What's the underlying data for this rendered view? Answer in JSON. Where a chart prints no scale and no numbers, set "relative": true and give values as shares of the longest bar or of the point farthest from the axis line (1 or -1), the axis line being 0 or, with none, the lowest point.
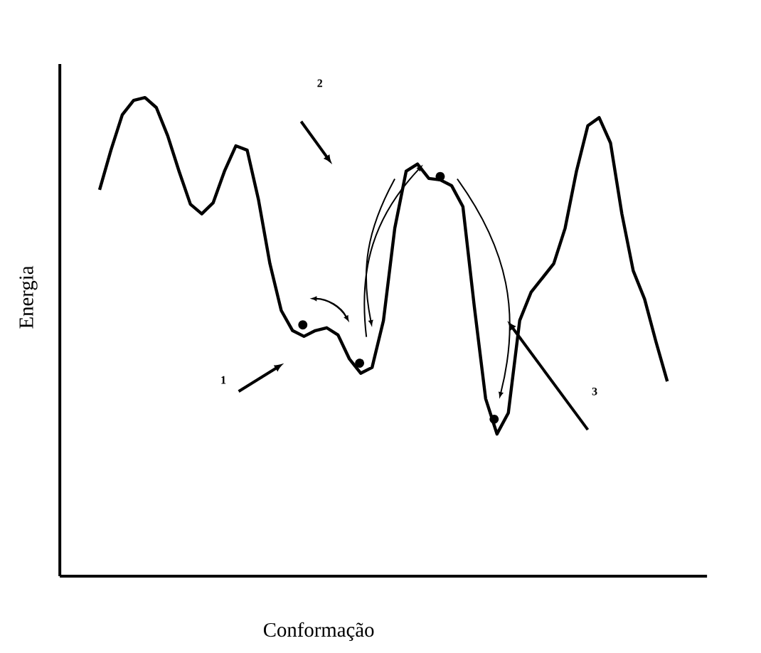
{
  "chart_data": {
    "type": "line",
    "relative": true,
    "xlabel": "Conformação",
    "ylabel": "Energia",
    "marker": "none",
    "categories": [
      null,
      null,
      null,
      null,
      null,
      null,
      null,
      null,
      null,
      null,
      null,
      null,
      null,
      null,
      null,
      null,
      null,
      null,
      null,
      null,
      null,
      null,
      null,
      null,
      null,
      null,
      null,
      null,
      null,
      null,
      null,
      null,
      null,
      null,
      null,
      null,
      null,
      null,
      null,
      null,
      null,
      null,
      null,
      null,
      null,
      null,
      null,
      null,
      null,
      null,
      null
    ],
    "series": [
      {
        "color": "#000000",
        "values": [
          0.807,
          0.89,
          0.964,
          0.994,
          1.0,
          0.979,
          0.92,
          0.846,
          0.777,
          0.757,
          0.78,
          0.846,
          0.899,
          0.89,
          0.786,
          0.653,
          0.555,
          0.513,
          0.501,
          0.513,
          0.519,
          0.504,
          0.454,
          0.424,
          0.436,
          0.534,
          0.727,
          0.846,
          0.861,
          0.831,
          0.828,
          0.816,
          0.772,
          0.564,
          0.371,
          0.297,
          0.341,
          0.534,
          0.593,
          0.623,
          0.653,
          0.727,
          0.846,
          0.941,
          0.958,
          0.905,
          0.757,
          0.638,
          0.579,
          0.49,
          0.407
        ]
      }
    ],
    "annotations": [
      "1",
      "2",
      "3"
    ]
  }
}
